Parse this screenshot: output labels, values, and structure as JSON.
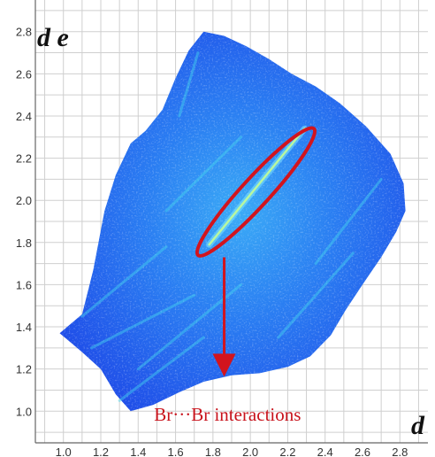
{
  "chart_data": {
    "type": "heatmap",
    "title": "",
    "xlabel": "d",
    "ylabel": "d e",
    "xlim": [
      0.85,
      2.95
    ],
    "ylim": [
      0.85,
      2.95
    ],
    "x_ticks": [
      "1.0",
      "1.2",
      "1.4",
      "1.6",
      "1.8",
      "2.0",
      "2.2",
      "2.4",
      "2.6",
      "2.8"
    ],
    "y_ticks": [
      "1.0",
      "1.2",
      "1.4",
      "1.6",
      "1.8",
      "2.0",
      "2.2",
      "2.4",
      "2.6",
      "2.8"
    ],
    "grid": true,
    "colors": {
      "background": "#ffffff",
      "grid": "#cfcfcf",
      "fill_dense": "#46d7f0",
      "fill_mid": "#2a8cf5",
      "fill_sparse": "#1e46e6",
      "annotation": "#d2141e"
    },
    "region_outline": [
      [
        0.98,
        1.37
      ],
      [
        1.1,
        1.46
      ],
      [
        1.16,
        1.67
      ],
      [
        1.22,
        1.95
      ],
      [
        1.28,
        2.12
      ],
      [
        1.36,
        2.27
      ],
      [
        1.44,
        2.33
      ],
      [
        1.53,
        2.43
      ],
      [
        1.6,
        2.58
      ],
      [
        1.67,
        2.71
      ],
      [
        1.75,
        2.8
      ],
      [
        1.86,
        2.78
      ],
      [
        1.98,
        2.73
      ],
      [
        2.1,
        2.67
      ],
      [
        2.22,
        2.6
      ],
      [
        2.35,
        2.54
      ],
      [
        2.48,
        2.46
      ],
      [
        2.62,
        2.35
      ],
      [
        2.75,
        2.22
      ],
      [
        2.82,
        2.08
      ],
      [
        2.83,
        1.95
      ],
      [
        2.78,
        1.85
      ],
      [
        2.7,
        1.73
      ],
      [
        2.6,
        1.6
      ],
      [
        2.51,
        1.48
      ],
      [
        2.43,
        1.36
      ],
      [
        2.32,
        1.26
      ],
      [
        2.2,
        1.21
      ],
      [
        2.05,
        1.18
      ],
      [
        1.9,
        1.17
      ],
      [
        1.75,
        1.14
      ],
      [
        1.62,
        1.09
      ],
      [
        1.48,
        1.03
      ],
      [
        1.36,
        1.0
      ],
      [
        1.28,
        1.08
      ],
      [
        1.2,
        1.2
      ],
      [
        1.1,
        1.28
      ]
    ],
    "dense_band": {
      "from": [
        1.78,
        1.79
      ],
      "to": [
        2.29,
        2.34
      ]
    },
    "annotations": [
      {
        "text": "Br···Br interactions",
        "ellipse": {
          "center": [
            2.03,
            2.04
          ],
          "major_axis_ends": [
            [
              1.72,
              1.74
            ],
            [
              2.34,
              2.34
            ]
          ],
          "minor_half_width": 0.075
        },
        "arrow": {
          "from": [
            1.86,
            1.73
          ],
          "to": [
            1.86,
            1.18
          ]
        },
        "label_position": [
          1.92,
          0.98
        ]
      }
    ]
  }
}
